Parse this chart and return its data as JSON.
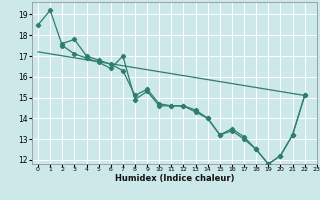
{
  "title": "",
  "xlabel": "Humidex (Indice chaleur)",
  "ylabel": "",
  "xlim": [
    -0.5,
    23
  ],
  "ylim": [
    11.8,
    19.6
  ],
  "yticks": [
    12,
    13,
    14,
    15,
    16,
    17,
    18,
    19
  ],
  "xticks": [
    0,
    1,
    2,
    3,
    4,
    5,
    6,
    7,
    8,
    9,
    10,
    11,
    12,
    13,
    14,
    15,
    16,
    17,
    18,
    19,
    20,
    21,
    22,
    23
  ],
  "bg_color": "#cce8e8",
  "line_color": "#2e7d6e",
  "grid_color": "#ffffff",
  "line1_x": [
    0,
    1,
    2,
    3,
    4,
    5,
    6,
    7,
    8,
    9,
    10,
    11,
    12,
    13,
    14,
    15,
    16,
    17,
    18,
    19,
    20,
    21,
    22
  ],
  "line1_y": [
    18.5,
    19.2,
    17.5,
    17.1,
    16.9,
    16.7,
    16.4,
    17.0,
    14.9,
    15.3,
    14.6,
    14.6,
    14.6,
    14.4,
    14.0,
    13.2,
    13.5,
    13.1,
    12.5,
    11.8,
    12.2,
    13.2,
    15.1
  ],
  "line2_x": [
    2,
    3,
    4,
    5,
    6,
    7,
    8,
    9,
    10,
    11,
    12,
    13,
    14,
    15,
    16,
    17,
    18,
    19,
    20,
    21,
    22
  ],
  "line2_y": [
    17.6,
    17.8,
    17.0,
    16.8,
    16.6,
    16.3,
    15.1,
    15.4,
    14.7,
    14.6,
    14.6,
    14.3,
    14.0,
    13.2,
    13.4,
    13.0,
    12.5,
    11.8,
    12.2,
    13.2,
    15.1
  ],
  "line3_x": [
    0,
    22
  ],
  "line3_y": [
    17.2,
    15.1
  ]
}
